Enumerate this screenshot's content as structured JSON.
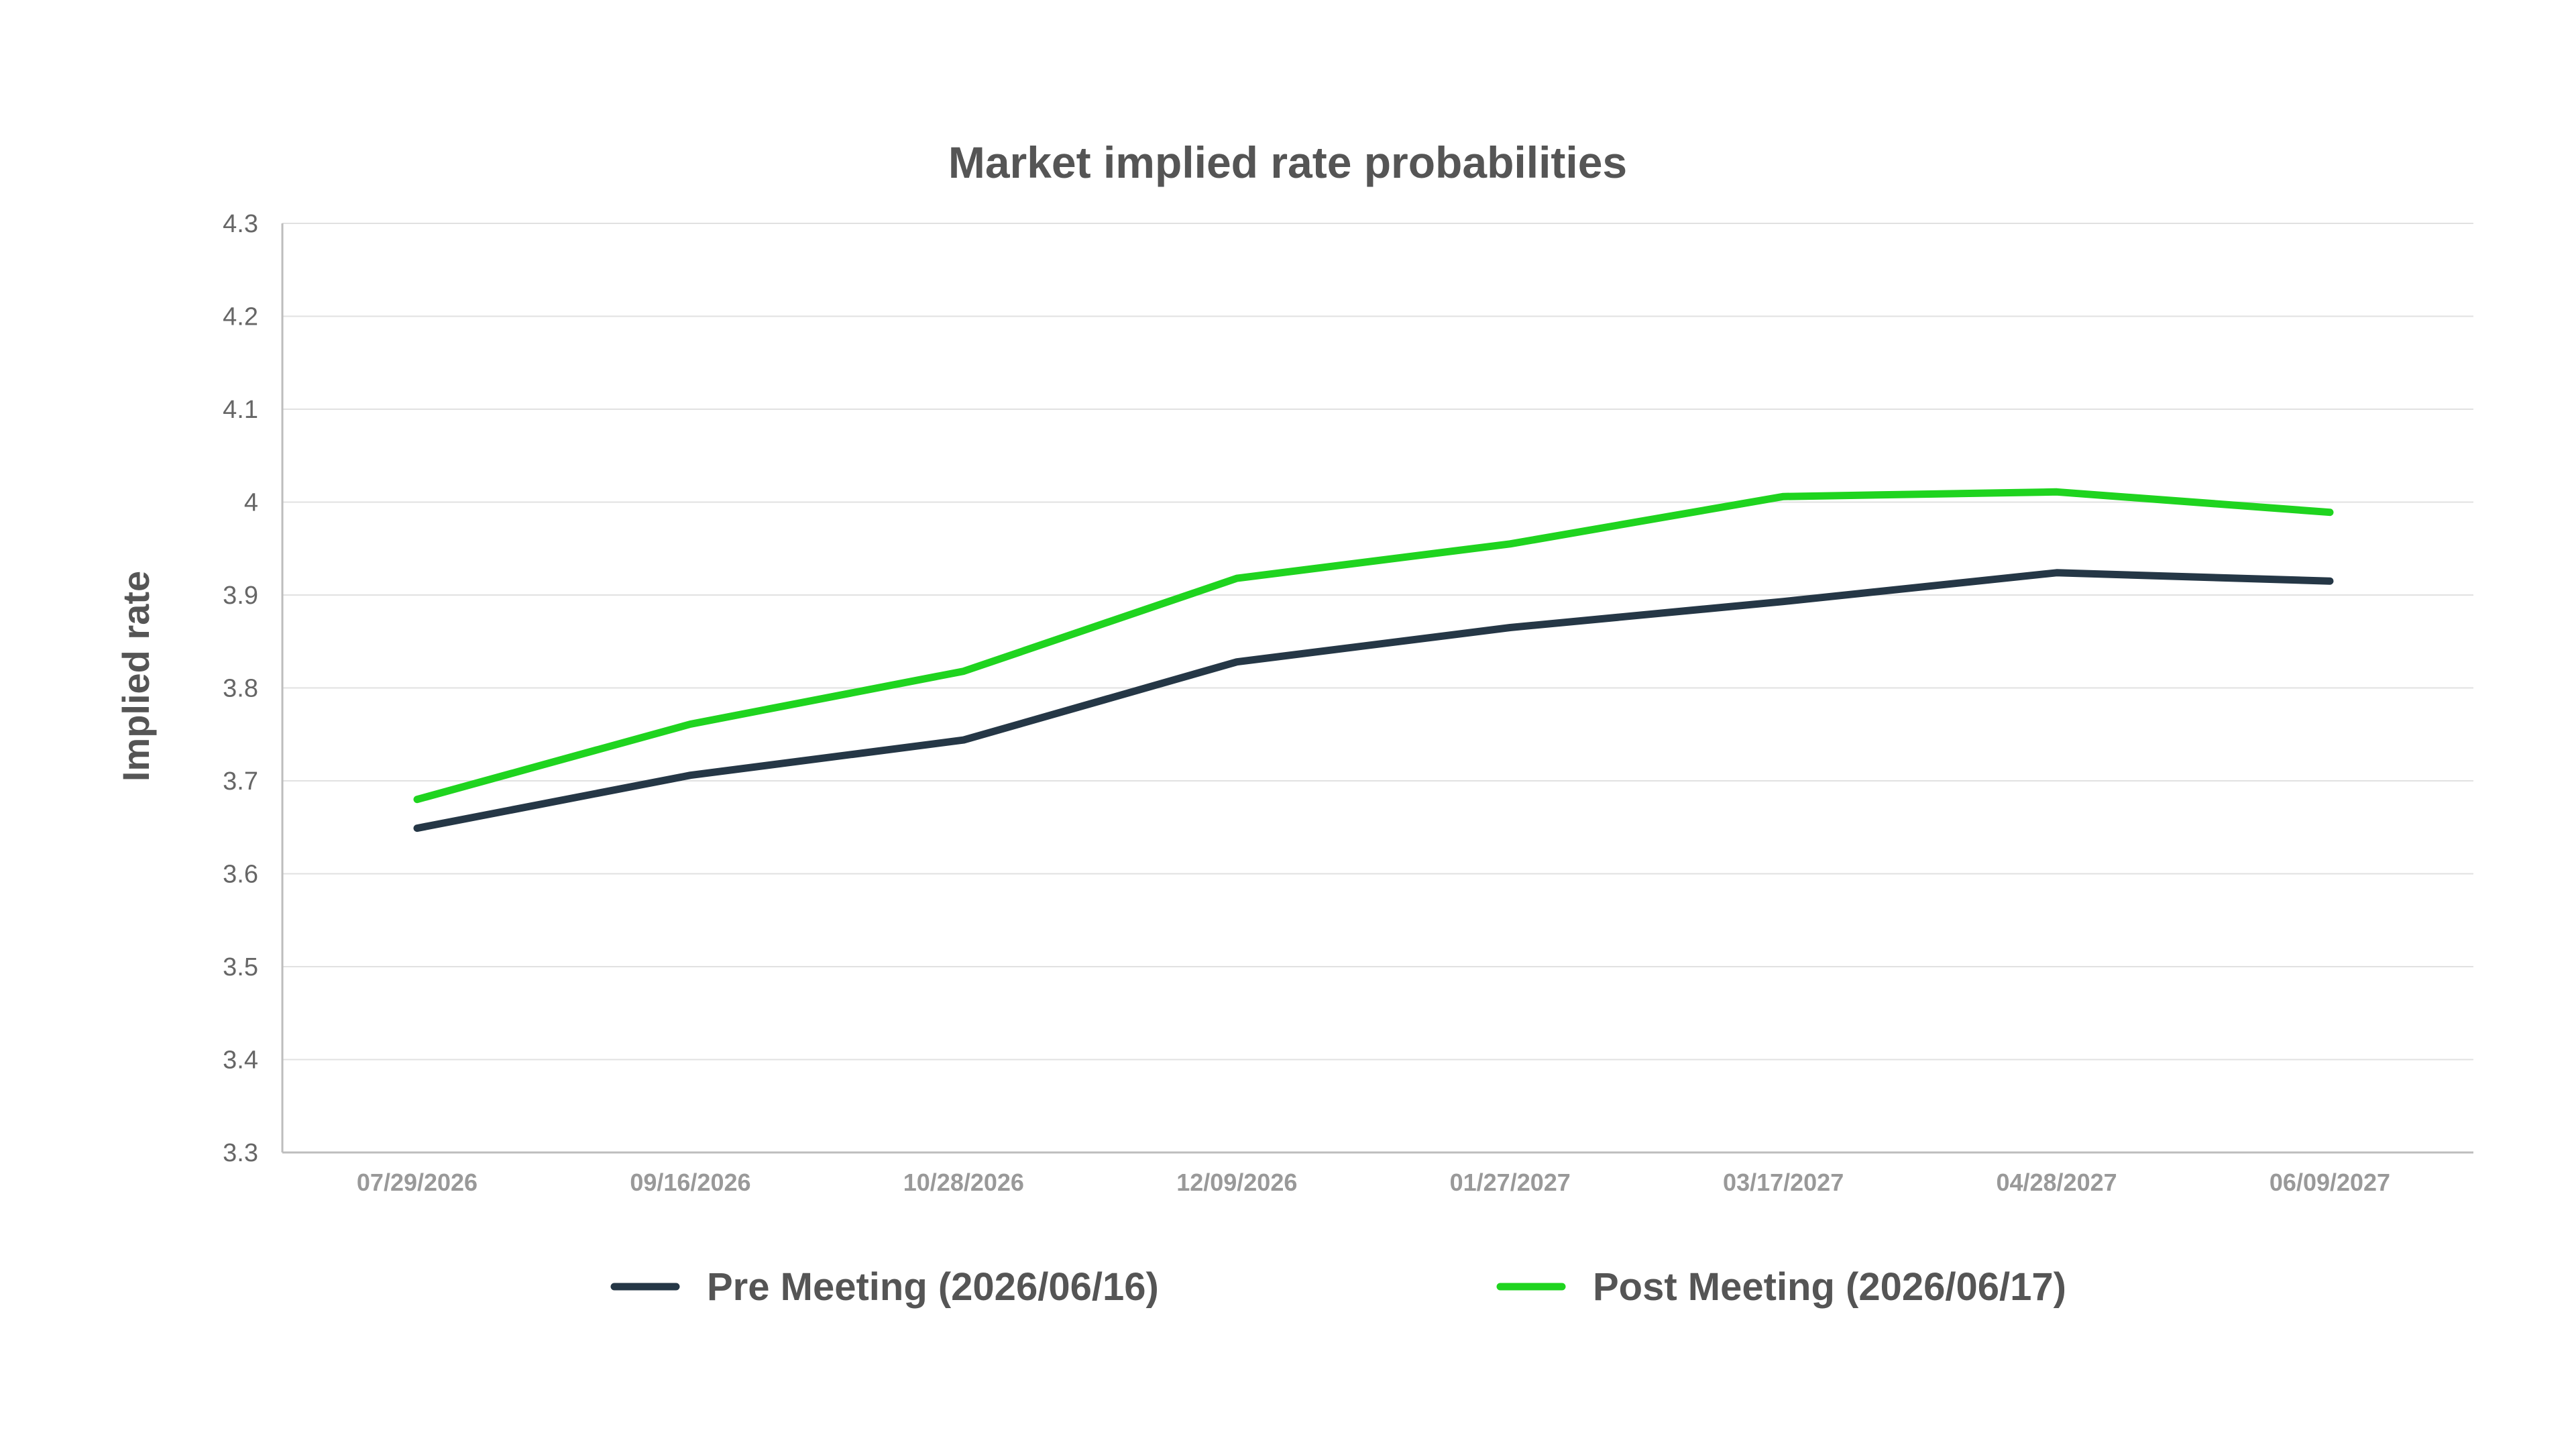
{
  "chart_data": {
    "type": "line",
    "title": "Market implied rate probabilities",
    "xlabel": "",
    "ylabel": "Implied rate",
    "categories": [
      "07/29/2026",
      "09/16/2026",
      "10/28/2026",
      "12/09/2026",
      "01/27/2027",
      "03/17/2027",
      "04/28/2027",
      "06/09/2027"
    ],
    "y_ticks": [
      "4.3",
      "4.2",
      "4.1",
      "4",
      "3.9",
      "3.8",
      "3.7",
      "3.6",
      "3.5",
      "3.4",
      "3.3"
    ],
    "ylim": [
      3.3,
      4.3
    ],
    "grid": true,
    "legend_position": "bottom",
    "series": [
      {
        "name": "Pre Meeting (2026/06/16)",
        "color": "#253746",
        "values": [
          3.649,
          3.706,
          3.744,
          3.828,
          3.865,
          3.893,
          3.924,
          3.915
        ]
      },
      {
        "name": "Post Meeting (2026/06/17)",
        "color": "#1fd41f",
        "values": [
          3.68,
          3.761,
          3.818,
          3.918,
          3.955,
          4.006,
          4.011,
          3.989
        ]
      }
    ]
  }
}
